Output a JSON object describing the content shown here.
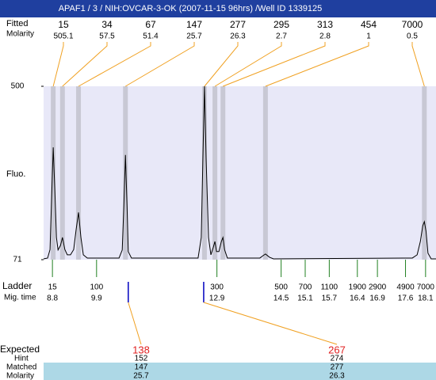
{
  "chart_data": {
    "type": "electropherogram",
    "title": "APAF1 / 3 / NIH:OVCAR-3-OK (2007-11-15 96hrs) /Well ID 1339125",
    "y_label": "Fluo.",
    "row_labels": {
      "fitted": "Fitted",
      "molarity": "Molarity",
      "ladder": "Ladder",
      "mig_time": "Mig. time",
      "expected": "Expected",
      "hint": "Hint",
      "matched": "Matched",
      "expected_molarity": "Molarity"
    },
    "xlim": [
      8.58,
      18.36
    ],
    "ylim": [
      71,
      500
    ],
    "yticks": [
      71,
      500
    ],
    "color": "#000000",
    "x": [
      8.58,
      8.68,
      8.74,
      8.78,
      8.82,
      8.86,
      8.9,
      8.94,
      9.0,
      9.05,
      9.11,
      9.17,
      9.25,
      9.33,
      9.39,
      9.45,
      9.51,
      9.57,
      9.67,
      10.46,
      10.54,
      10.58,
      10.62,
      10.66,
      10.69,
      10.77,
      12.43,
      12.51,
      12.55,
      12.59,
      12.63,
      12.69,
      12.75,
      12.81,
      12.85,
      12.89,
      12.95,
      13.01,
      13.05,
      13.09,
      13.16,
      13.97,
      14.05,
      14.11,
      14.21,
      14.31,
      17.77,
      17.89,
      17.97,
      18.03,
      18.07,
      18.11,
      18.16,
      18.24,
      18.36
    ],
    "values": [
      73,
      75,
      96,
      224,
      349,
      243,
      126,
      95,
      106,
      126,
      96,
      83,
      83,
      96,
      145,
      188,
      126,
      83,
      75,
      75,
      95,
      204,
      330,
      204,
      91,
      75,
      75,
      126,
      322,
      500,
      322,
      126,
      83,
      102,
      116,
      91,
      91,
      116,
      126,
      96,
      75,
      75,
      81,
      85,
      77,
      73,
      75,
      83,
      116,
      155,
      165,
      142,
      87,
      73,
      73
    ],
    "peaks": {
      "sizes": [
        15,
        34,
        67,
        147,
        277,
        295,
        313,
        454,
        7000
      ],
      "molarity": [
        505.1,
        57.5,
        51.4,
        25.7,
        26.3,
        2.7,
        2.8,
        1,
        0.5
      ],
      "times": [
        8.82,
        9.05,
        9.45,
        10.62,
        12.59,
        12.85,
        13.05,
        14.11,
        18.07
      ]
    },
    "ladder": {
      "sizes": [
        15,
        100,
        300,
        500,
        700,
        1100,
        1900,
        2900,
        4900,
        7000
      ],
      "times": [
        8.8,
        9.9,
        12.9,
        14.5,
        15.1,
        15.7,
        16.4,
        16.9,
        17.6,
        18.1
      ]
    },
    "expected": {
      "expected": [
        138,
        267
      ],
      "hint": [
        152,
        274
      ],
      "matched": [
        147,
        277
      ],
      "molarity": [
        25.7,
        26.3
      ],
      "times": [
        10.69,
        12.57
      ]
    }
  }
}
